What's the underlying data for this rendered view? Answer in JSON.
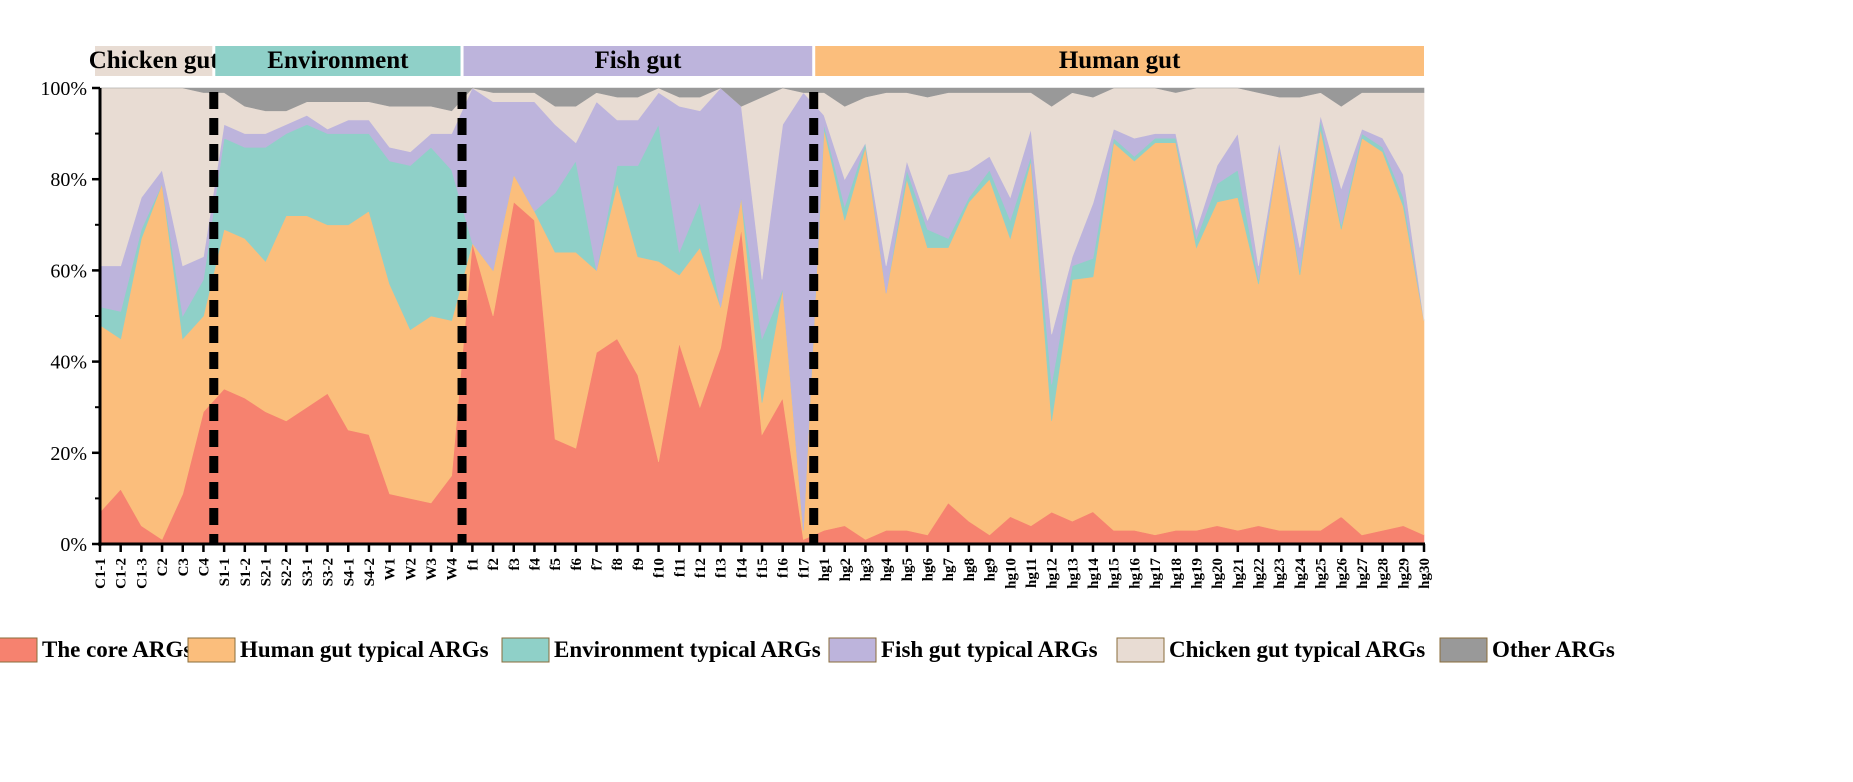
{
  "chart_data": {
    "type": "area",
    "stacked": true,
    "normalized_percent": true,
    "groups": [
      {
        "name": "Chicken gut",
        "start": "C1-1",
        "end": "C4",
        "color": "#e8dcd3"
      },
      {
        "name": "Environment",
        "start": "S1-1",
        "end": "W4",
        "color": "#8fd0c8"
      },
      {
        "name": "Fish gut",
        "start": "f1",
        "end": "f17",
        "color": "#bdb4dc"
      },
      {
        "name": "Human gut",
        "start": "hg1",
        "end": "hg30",
        "color": "#fbbe7c"
      }
    ],
    "x": [
      "C1-1",
      "C1-2",
      "C1-3",
      "C2",
      "C3",
      "C4",
      "S1-1",
      "S1-2",
      "S2-1",
      "S2-2",
      "S3-1",
      "S3-2",
      "S4-1",
      "S4-2",
      "W1",
      "W2",
      "W3",
      "W4",
      "f1",
      "f2",
      "f3",
      "f4",
      "f5",
      "f6",
      "f7",
      "f8",
      "f9",
      "f10",
      "f11",
      "f12",
      "f13",
      "f14",
      "f15",
      "f16",
      "f17",
      "hg1",
      "hg2",
      "hg3",
      "hg4",
      "hg5",
      "hg6",
      "hg7",
      "hg8",
      "hg9",
      "hg10",
      "hg11",
      "hg12",
      "hg13",
      "hg14",
      "hg15",
      "hg16",
      "hg17",
      "hg18",
      "hg19",
      "hg20",
      "hg21",
      "hg22",
      "hg23",
      "hg24",
      "hg25",
      "hg26",
      "hg27",
      "hg28",
      "hg29",
      "hg30"
    ],
    "y_ticks": [
      "0%",
      "20%",
      "40%",
      "60%",
      "80%",
      "100%"
    ],
    "ylim": [
      0,
      100
    ],
    "series": [
      {
        "name": "The core ARGs",
        "color": "#f6826f",
        "values": [
          7,
          12,
          4,
          1,
          11,
          29,
          34,
          32,
          29,
          27,
          30,
          33,
          25,
          24,
          11,
          10,
          9,
          15,
          66,
          50,
          75,
          71,
          23,
          21,
          42,
          45,
          37,
          18,
          44,
          30,
          43,
          69,
          24,
          32,
          1,
          3,
          4,
          1,
          3,
          3,
          2,
          9,
          5,
          2,
          6,
          4,
          7,
          5,
          7,
          3,
          3,
          2,
          3,
          3,
          4,
          3,
          4,
          3,
          3,
          3,
          6,
          2,
          3,
          4,
          2
        ]
      },
      {
        "name": "Human gut typical ARGs",
        "color": "#fbbe7c",
        "values": [
          41,
          33,
          63,
          78,
          34,
          21,
          35,
          35,
          33,
          45,
          42,
          37,
          45,
          49,
          46,
          37,
          41,
          34,
          0,
          10,
          6,
          2,
          41,
          43,
          18,
          34,
          26,
          44,
          15,
          35,
          9,
          7,
          7,
          24,
          2,
          88,
          67,
          86,
          52,
          77,
          63,
          56,
          70,
          78,
          61,
          80,
          20,
          53,
          51,
          85,
          81,
          86,
          85,
          62,
          71,
          73,
          53,
          84,
          56,
          88,
          63,
          87,
          83,
          70,
          47
        ]
      },
      {
        "name": "Environment typical ARGs",
        "color": "#8fd0c8",
        "values": [
          4,
          6,
          2,
          0,
          5,
          8,
          20,
          20,
          25,
          18,
          20,
          20,
          20,
          17,
          27,
          36,
          37,
          33,
          0,
          0,
          0,
          0,
          13,
          20,
          0,
          4,
          20,
          30,
          5,
          10,
          0,
          0,
          14,
          0,
          0,
          1,
          3,
          1,
          0,
          2,
          4,
          2,
          1,
          2,
          4,
          1,
          8,
          3,
          4,
          1,
          1,
          1,
          1,
          2,
          4,
          6,
          1,
          0,
          1,
          2,
          1,
          1,
          1,
          2,
          0
        ]
      },
      {
        "name": "Fish gut typical ARGs",
        "color": "#bdb4dc",
        "values": [
          9,
          10,
          7,
          3,
          11,
          5,
          3,
          3,
          3,
          2,
          2,
          1,
          3,
          3,
          3,
          3,
          3,
          8,
          34,
          37,
          16,
          24,
          15,
          4,
          37,
          10,
          10,
          7,
          32,
          20,
          48,
          20,
          13,
          36,
          96,
          2,
          6,
          0,
          6,
          2,
          2,
          14,
          6,
          3,
          5,
          6,
          11,
          2,
          12,
          2,
          4,
          1,
          1,
          2,
          4,
          8,
          3,
          1,
          5,
          1,
          8,
          1,
          2,
          5,
          0
        ]
      },
      {
        "name": "Chicken gut typical ARGs",
        "color": "#e8dcd3",
        "values": [
          39,
          39,
          24,
          18,
          39,
          36,
          7,
          6,
          5,
          3,
          3,
          6,
          4,
          4,
          9,
          10,
          6,
          5,
          0,
          2,
          2,
          2,
          4,
          8,
          2,
          5,
          5,
          1,
          2,
          3,
          0,
          0,
          40,
          8,
          0,
          5,
          16,
          10,
          38,
          15,
          27,
          18,
          17,
          14,
          23,
          8,
          50,
          36,
          23,
          9,
          11,
          10,
          9,
          31,
          17,
          10,
          38,
          10,
          33,
          5,
          18,
          8,
          10,
          18,
          50
        ]
      },
      {
        "name": "Other ARGs",
        "color": "#999999",
        "values": [
          0,
          0,
          0,
          0,
          0,
          1,
          1,
          4,
          5,
          5,
          3,
          3,
          3,
          3,
          4,
          4,
          4,
          5,
          0,
          1,
          1,
          1,
          4,
          4,
          1,
          2,
          2,
          0,
          2,
          2,
          0,
          4,
          2,
          0,
          1,
          1,
          4,
          2,
          1,
          1,
          2,
          1,
          1,
          1,
          1,
          1,
          4,
          1,
          2,
          0,
          0,
          0,
          1,
          0,
          0,
          0,
          1,
          2,
          2,
          1,
          4,
          1,
          1,
          1,
          1
        ]
      }
    ],
    "legend_placement": "bottom",
    "separators_between_groups": true,
    "grid": false
  }
}
